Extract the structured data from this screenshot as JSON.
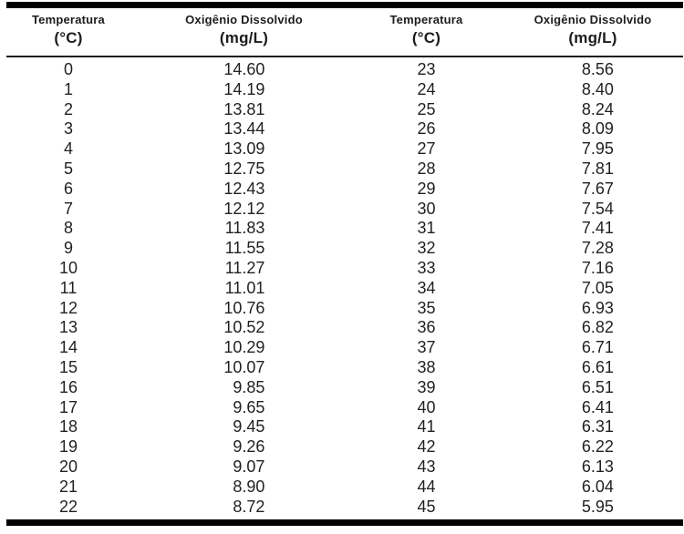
{
  "table": {
    "columns": [
      {
        "title": "Temperatura",
        "unit": "(°C)"
      },
      {
        "title": "Oxigênio Dissolvido",
        "unit": "(mg/L)"
      },
      {
        "title": "Temperatura",
        "unit": "(°C)"
      },
      {
        "title": "Oxigênio Dissolvido",
        "unit": "(mg/L)"
      }
    ],
    "rows": [
      [
        "0",
        "14.60",
        "23",
        "8.56"
      ],
      [
        "1",
        "14.19",
        "24",
        "8.40"
      ],
      [
        "2",
        "13.81",
        "25",
        "8.24"
      ],
      [
        "3",
        "13.44",
        "26",
        "8.09"
      ],
      [
        "4",
        "13.09",
        "27",
        "7.95"
      ],
      [
        "5",
        "12.75",
        "28",
        "7.81"
      ],
      [
        "6",
        "12.43",
        "29",
        "7.67"
      ],
      [
        "7",
        "12.12",
        "30",
        "7.54"
      ],
      [
        "8",
        "11.83",
        "31",
        "7.41"
      ],
      [
        "9",
        "11.55",
        "32",
        "7.28"
      ],
      [
        "10",
        "11.27",
        "33",
        "7.16"
      ],
      [
        "11",
        "11.01",
        "34",
        "7.05"
      ],
      [
        "12",
        "10.76",
        "35",
        "6.93"
      ],
      [
        "13",
        "10.52",
        "36",
        "6.82"
      ],
      [
        "14",
        "10.29",
        "37",
        "6.71"
      ],
      [
        "15",
        "10.07",
        "38",
        "6.61"
      ],
      [
        "16",
        "9.85",
        "39",
        "6.51"
      ],
      [
        "17",
        "9.65",
        "40",
        "6.41"
      ],
      [
        "18",
        "9.45",
        "41",
        "6.31"
      ],
      [
        "19",
        "9.26",
        "42",
        "6.22"
      ],
      [
        "20",
        "9.07",
        "43",
        "6.13"
      ],
      [
        "21",
        "8.90",
        "44",
        "6.04"
      ],
      [
        "22",
        "8.72",
        "45",
        "5.95"
      ]
    ]
  },
  "chart_data": {
    "type": "table",
    "title": "",
    "columns": [
      "Temperatura (°C)",
      "Oxigênio Dissolvido (mg/L)",
      "Temperatura (°C)",
      "Oxigênio Dissolvido (mg/L)"
    ],
    "x_label": "Temperatura (°C)",
    "y_label": "Oxigênio Dissolvido (mg/L)",
    "x": [
      0,
      1,
      2,
      3,
      4,
      5,
      6,
      7,
      8,
      9,
      10,
      11,
      12,
      13,
      14,
      15,
      16,
      17,
      18,
      19,
      20,
      21,
      22,
      23,
      24,
      25,
      26,
      27,
      28,
      29,
      30,
      31,
      32,
      33,
      34,
      35,
      36,
      37,
      38,
      39,
      40,
      41,
      42,
      43,
      44,
      45
    ],
    "series": [
      {
        "name": "Oxigênio Dissolvido (mg/L)",
        "values": [
          14.6,
          14.19,
          13.81,
          13.44,
          13.09,
          12.75,
          12.43,
          12.12,
          11.83,
          11.55,
          11.27,
          11.01,
          10.76,
          10.52,
          10.29,
          10.07,
          9.85,
          9.65,
          9.45,
          9.26,
          9.07,
          8.9,
          8.72,
          8.56,
          8.4,
          8.24,
          8.09,
          7.95,
          7.81,
          7.67,
          7.54,
          7.41,
          7.28,
          7.16,
          7.05,
          6.93,
          6.82,
          6.71,
          6.61,
          6.51,
          6.41,
          6.31,
          6.22,
          6.13,
          6.04,
          5.95
        ]
      }
    ],
    "colors": {
      "text": "#231f20",
      "rule": "#000000",
      "background": "#ffffff"
    }
  }
}
